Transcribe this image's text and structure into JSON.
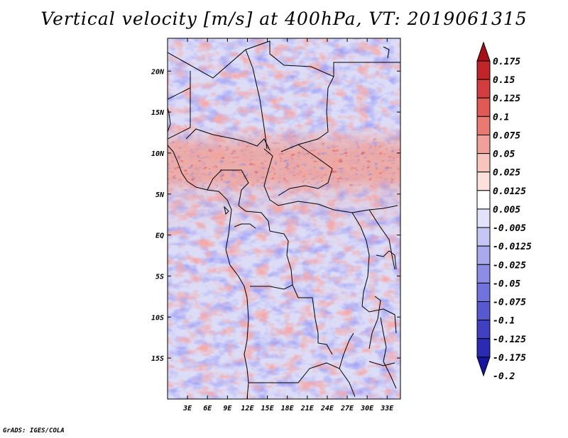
{
  "title": "Vertical velocity [m/s] at 400hPa, VT: 2019061315",
  "credit": "GrADS: IGES/COLA",
  "map": {
    "lon_range": [
      0,
      35
    ],
    "lat_range": [
      -20,
      24
    ],
    "x_ticks": [
      "3E",
      "6E",
      "9E",
      "12E",
      "15E",
      "18E",
      "21E",
      "24E",
      "27E",
      "30E",
      "33E"
    ],
    "y_ticks": [
      "20N",
      "15N",
      "10N",
      "5N",
      "EQ",
      "5S",
      "10S",
      "15S"
    ]
  },
  "colorbar": {
    "labels": [
      "0.175",
      "0.15",
      "0.125",
      "0.1",
      "0.075",
      "0.05",
      "0.025",
      "0.0125",
      "0.005",
      "-0.005",
      "-0.0125",
      "-0.025",
      "-0.05",
      "-0.075",
      "-0.1",
      "-0.125",
      "-0.175",
      "-0.2"
    ],
    "colors": [
      "#a50f15",
      "#c0252a",
      "#d43d3d",
      "#e05a55",
      "#e87a72",
      "#f0a098",
      "#f7c4be",
      "#fbe0dc",
      "#ffffff",
      "#e2e2fb",
      "#c6c6f5",
      "#a9a9ee",
      "#8d8de6",
      "#7272dc",
      "#5858d0",
      "#4040c2",
      "#2a2ab2",
      "#1515a0"
    ]
  }
}
